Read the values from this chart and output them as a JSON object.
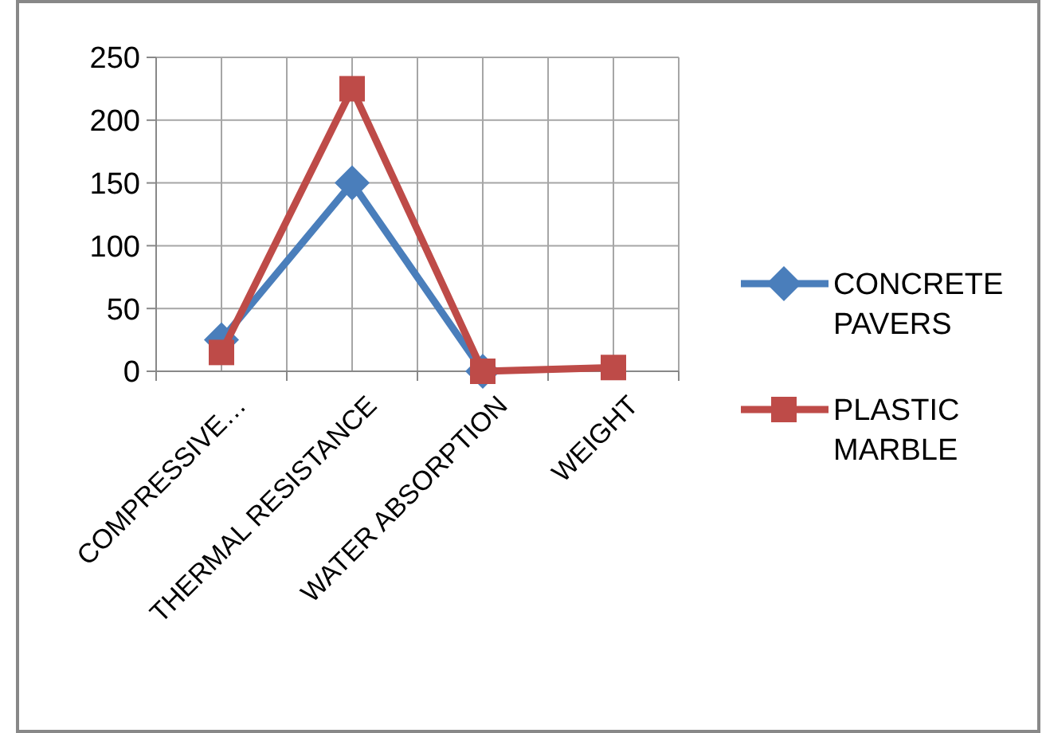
{
  "chart_data": {
    "type": "line",
    "categories": [
      "COMPRESSIVE…",
      "THERMAL RESISTANCE",
      "WATER ABSORPTION",
      "WEIGHT"
    ],
    "series": [
      {
        "name": "CONCRETE PAVERS",
        "color": "#4a7ebb",
        "values": [
          25,
          150,
          0,
          null
        ],
        "marker": "diamond"
      },
      {
        "name": "PLASTIC MARBLE",
        "color": "#be4b48",
        "values": [
          15,
          225,
          0,
          3
        ],
        "marker": "square"
      }
    ],
    "ylim": [
      0,
      250
    ],
    "yticks": [
      0,
      50,
      100,
      150,
      200,
      250
    ],
    "grid": true,
    "legend": "right",
    "line_style": "solid"
  }
}
